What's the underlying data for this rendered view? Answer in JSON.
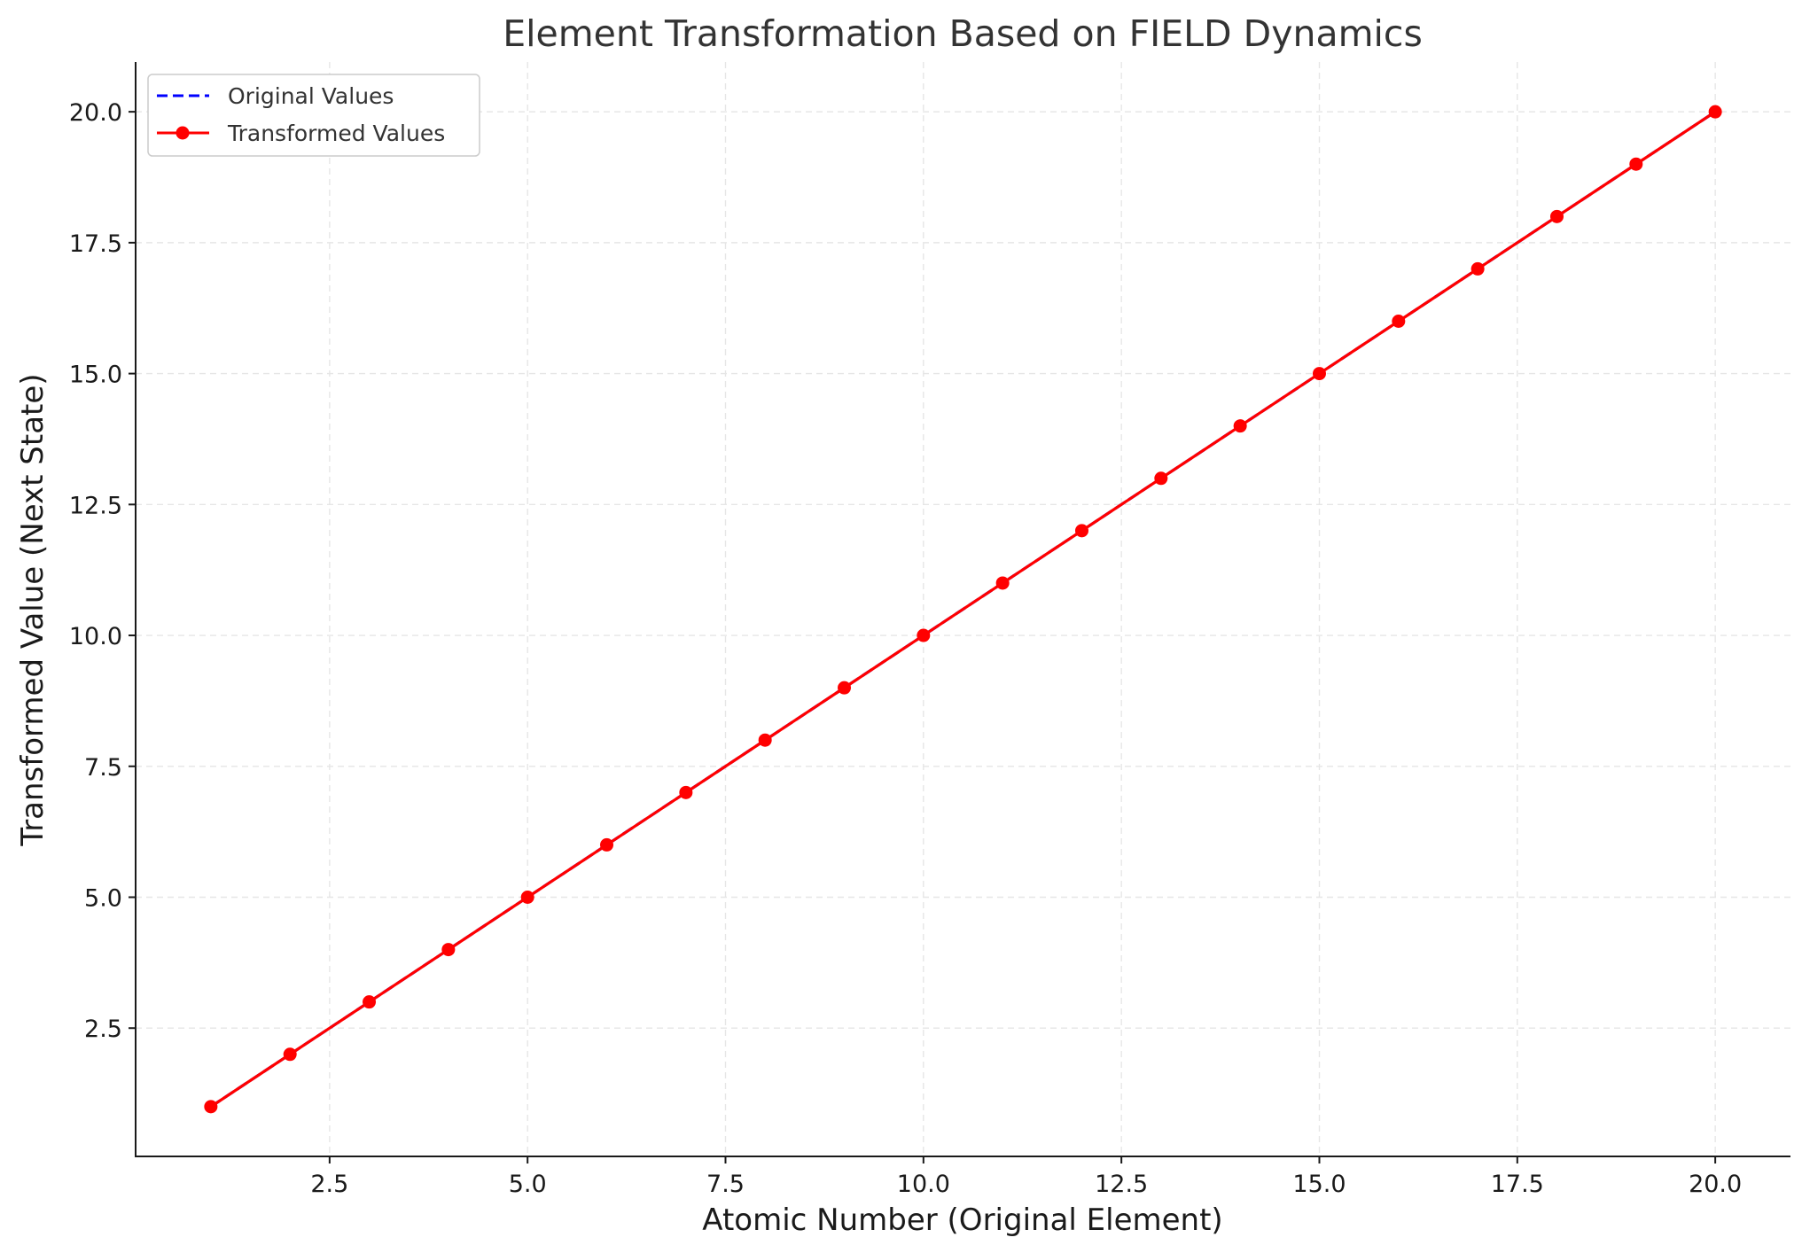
{
  "chart_data": {
    "type": "line",
    "title": "Element Transformation Based on FIELD Dynamics",
    "xlabel": "Atomic Number (Original Element)",
    "ylabel": "Transformed Value (Next State)",
    "x": [
      1,
      2,
      3,
      4,
      5,
      6,
      7,
      8,
      9,
      10,
      11,
      12,
      13,
      14,
      15,
      16,
      17,
      18,
      19,
      20
    ],
    "series": [
      {
        "name": "Original Values",
        "color": "#0000ff",
        "style": "dashed",
        "marker": "none",
        "values": [
          1,
          2,
          3,
          4,
          5,
          6,
          7,
          8,
          9,
          10,
          11,
          12,
          13,
          14,
          15,
          16,
          17,
          18,
          19,
          20
        ]
      },
      {
        "name": "Transformed Values",
        "color": "#ff0000",
        "style": "solid",
        "marker": "circle",
        "values": [
          1,
          2,
          3,
          4,
          5,
          6,
          7,
          8,
          9,
          10,
          11,
          12,
          13,
          14,
          15,
          16,
          17,
          18,
          19,
          20
        ]
      }
    ],
    "xlim": [
      0.05,
      20.95
    ],
    "ylim": [
      0.05,
      20.95
    ],
    "xticks": [
      "2.5",
      "5.0",
      "7.5",
      "10.0",
      "12.5",
      "15.0",
      "17.5",
      "20.0"
    ],
    "yticks": [
      "2.5",
      "5.0",
      "7.5",
      "10.0",
      "12.5",
      "15.0",
      "17.5",
      "20.0"
    ],
    "grid": true,
    "legend_position": "top-left"
  }
}
